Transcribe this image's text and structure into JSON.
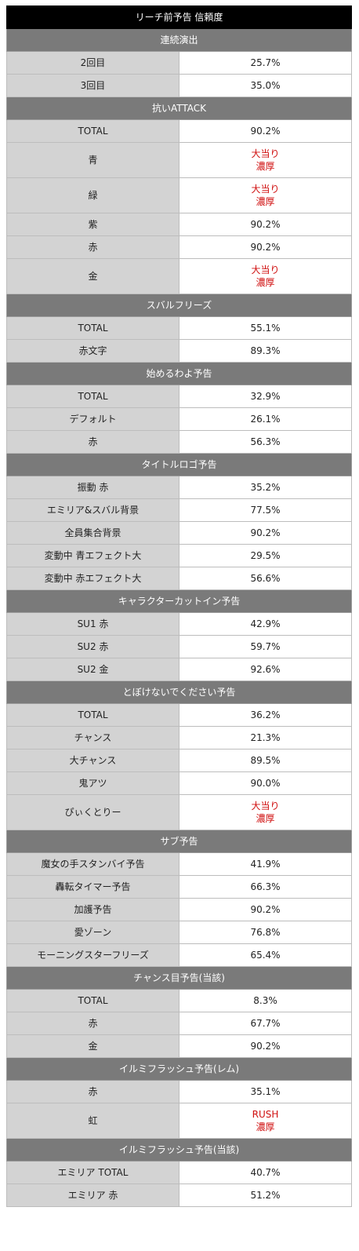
{
  "title": "リーチ前予告 信頼度",
  "accent_red": "#d01010",
  "sections": [
    {
      "name": "連続演出",
      "rows": [
        {
          "label": "2回目",
          "value": "25.7%"
        },
        {
          "label": "3回目",
          "value": "35.0%"
        }
      ]
    },
    {
      "name": "抗いATTACK",
      "rows": [
        {
          "label": "TOTAL",
          "value": "90.2%"
        },
        {
          "label": "青",
          "value_lines": [
            "大当り",
            "濃厚"
          ]
        },
        {
          "label": "緑",
          "value_lines": [
            "大当り",
            "濃厚"
          ]
        },
        {
          "label": "紫",
          "value": "90.2%"
        },
        {
          "label": "赤",
          "value": "90.2%"
        },
        {
          "label": "金",
          "value_lines": [
            "大当り",
            "濃厚"
          ]
        }
      ]
    },
    {
      "name": "スバルフリーズ",
      "rows": [
        {
          "label": "TOTAL",
          "value": "55.1%"
        },
        {
          "label": "赤文字",
          "value": "89.3%"
        }
      ]
    },
    {
      "name": "始めるわよ予告",
      "rows": [
        {
          "label": "TOTAL",
          "value": "32.9%"
        },
        {
          "label": "デフォルト",
          "value": "26.1%"
        },
        {
          "label": "赤",
          "value": "56.3%"
        }
      ]
    },
    {
      "name": "タイトルロゴ予告",
      "rows": [
        {
          "label": "振動 赤",
          "value": "35.2%"
        },
        {
          "label": "エミリア&スバル背景",
          "value": "77.5%"
        },
        {
          "label": "全員集合背景",
          "value": "90.2%"
        },
        {
          "label": "変動中 青エフェクト大",
          "value": "29.5%"
        },
        {
          "label": "変動中 赤エフェクト大",
          "value": "56.6%"
        }
      ]
    },
    {
      "name": "キャラクターカットイン予告",
      "rows": [
        {
          "label": "SU1 赤",
          "value": "42.9%"
        },
        {
          "label": "SU2 赤",
          "value": "59.7%"
        },
        {
          "label": "SU2 金",
          "value": "92.6%"
        }
      ]
    },
    {
      "name": "とぼけないでください予告",
      "rows": [
        {
          "label": "TOTAL",
          "value": "36.2%"
        },
        {
          "label": "チャンス",
          "value": "21.3%"
        },
        {
          "label": "大チャンス",
          "value": "89.5%"
        },
        {
          "label": "鬼アツ",
          "value": "90.0%"
        },
        {
          "label": "ぴぃくとりー",
          "value_lines": [
            "大当り",
            "濃厚"
          ]
        }
      ]
    },
    {
      "name": "サブ予告",
      "rows": [
        {
          "label": "魔女の手スタンバイ予告",
          "value": "41.9%"
        },
        {
          "label": "轟転タイマー予告",
          "value": "66.3%"
        },
        {
          "label": "加護予告",
          "value": "90.2%"
        },
        {
          "label": "愛ゾーン",
          "value": "76.8%"
        },
        {
          "label": "モーニングスターフリーズ",
          "value": "65.4%"
        }
      ]
    },
    {
      "name": "チャンス目予告(当該)",
      "rows": [
        {
          "label": "TOTAL",
          "value": "8.3%"
        },
        {
          "label": "赤",
          "value": "67.7%"
        },
        {
          "label": "金",
          "value": "90.2%"
        }
      ]
    },
    {
      "name": "イルミフラッシュ予告(レム)",
      "rows": [
        {
          "label": "赤",
          "value": "35.1%"
        },
        {
          "label": "虹",
          "value_lines": [
            "RUSH",
            "濃厚"
          ]
        }
      ]
    },
    {
      "name": "イルミフラッシュ予告(当該)",
      "rows": [
        {
          "label": "エミリア TOTAL",
          "value": "40.7%"
        },
        {
          "label": "エミリア 赤",
          "value": "51.2%"
        }
      ]
    }
  ]
}
